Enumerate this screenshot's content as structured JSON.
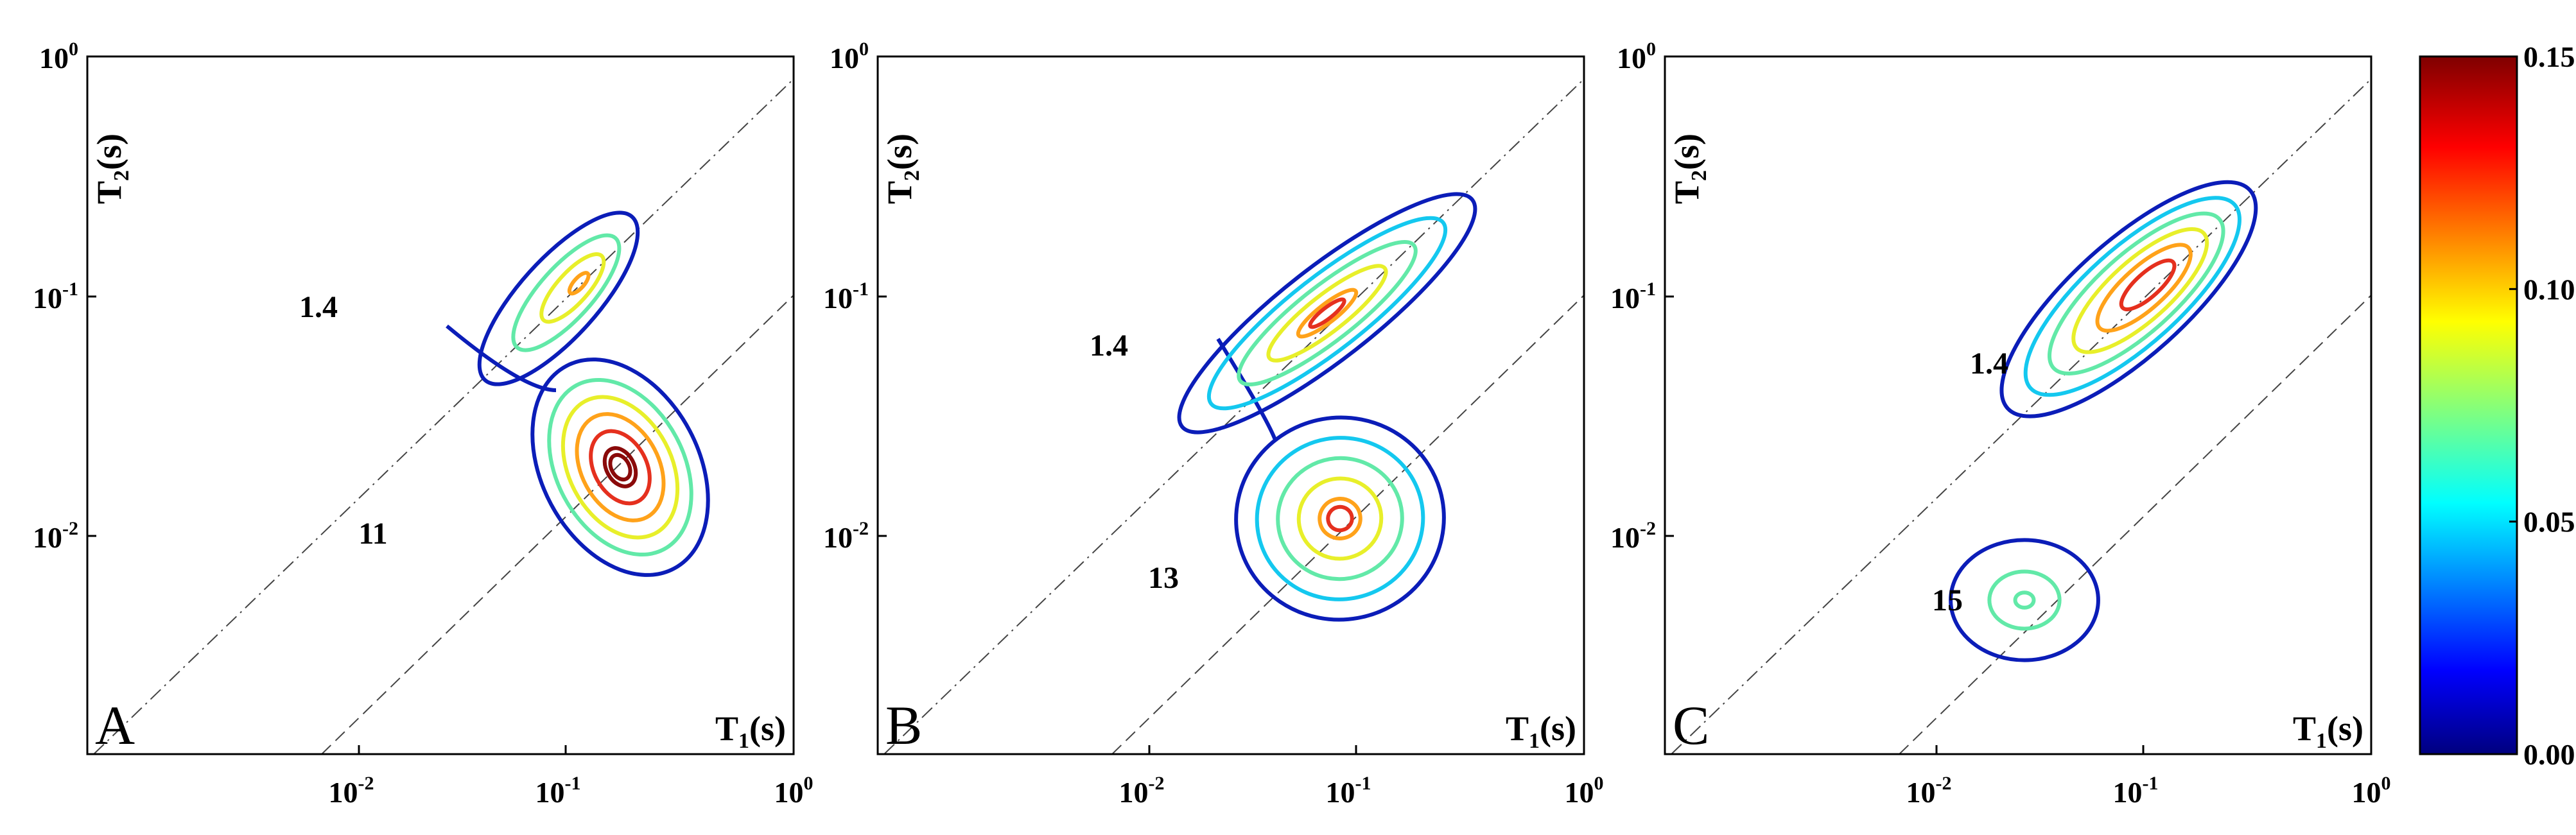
{
  "chart_data": [
    {
      "type": "contour",
      "panel": "A",
      "xlabel": "T1(s)",
      "ylabel": "T2(s)",
      "xscale": "log",
      "yscale": "log",
      "xlim": [
        0.001,
        1
      ],
      "ylim": [
        0.0001,
        1
      ],
      "x_ticks": [
        "10^-2",
        "10^-1",
        "10^0"
      ],
      "y_ticks": [
        "10^0",
        "10^-1",
        "10^-2"
      ],
      "reference_lines": [
        {
          "style": "dash-dot",
          "T1_T2_ratio": 1
        },
        {
          "style": "dashed",
          "T1_T2_ratio": 10
        }
      ],
      "peaks": [
        {
          "label": "1.4",
          "T1": 0.12,
          "T2": 0.085,
          "max_amplitude": 0.09
        },
        {
          "label": "11",
          "T1": 0.16,
          "T2": 0.015,
          "max_amplitude": 0.15
        }
      ]
    },
    {
      "type": "contour",
      "panel": "B",
      "xlabel": "T1(s)",
      "ylabel": "T2(s)",
      "xscale": "log",
      "yscale": "log",
      "xlim": [
        0.001,
        1
      ],
      "ylim": [
        0.0001,
        1
      ],
      "x_ticks": [
        "10^-2",
        "10^-1",
        "10^0"
      ],
      "y_ticks": [
        "10^0",
        "10^-1",
        "10^-2"
      ],
      "reference_lines": [
        {
          "style": "dash-dot",
          "T1_T2_ratio": 1
        },
        {
          "style": "dashed",
          "T1_T2_ratio": 10
        }
      ],
      "peaks": [
        {
          "label": "1.4",
          "T1": 0.11,
          "T2": 0.08,
          "max_amplitude": 0.12
        },
        {
          "label": "13",
          "T1": 0.12,
          "T2": 0.01,
          "max_amplitude": 0.12
        }
      ]
    },
    {
      "type": "contour",
      "panel": "C",
      "xlabel": "T1(s)",
      "ylabel": "T2(s)",
      "xscale": "log",
      "yscale": "log",
      "xlim": [
        0.001,
        1
      ],
      "ylim": [
        0.0001,
        1
      ],
      "x_ticks": [
        "10^-2",
        "10^-1",
        "10^0"
      ],
      "y_ticks": [
        "10^0",
        "10^-1",
        "10^-2"
      ],
      "reference_lines": [
        {
          "style": "dash-dot",
          "T1_T2_ratio": 1
        },
        {
          "style": "dashed",
          "T1_T2_ratio": 10
        }
      ],
      "peaks": [
        {
          "label": "1.4",
          "T1": 0.12,
          "T2": 0.09,
          "max_amplitude": 0.15
        },
        {
          "label": "15",
          "T1": 0.08,
          "T2": 0.005,
          "max_amplitude": 0.06
        }
      ]
    }
  ],
  "colorbar": {
    "min": 0.0,
    "max": 0.15,
    "colormap": "jet",
    "ticks": [
      "0.00",
      "0.05",
      "0.10",
      "0.15"
    ]
  },
  "contour_colors": [
    "#0b1db8",
    "#14c8ef",
    "#62e9a8",
    "#e8ef2a",
    "#ffa21a",
    "#e5301e",
    "#8a0a0a"
  ],
  "labels": {
    "panel_letters": [
      "A",
      "B",
      "C"
    ],
    "x_axis_title": "T",
    "x_axis_sub": "1",
    "x_axis_unit": "(s)",
    "y_axis_title": "T",
    "y_axis_sub": "2",
    "y_axis_unit": "(s)"
  }
}
